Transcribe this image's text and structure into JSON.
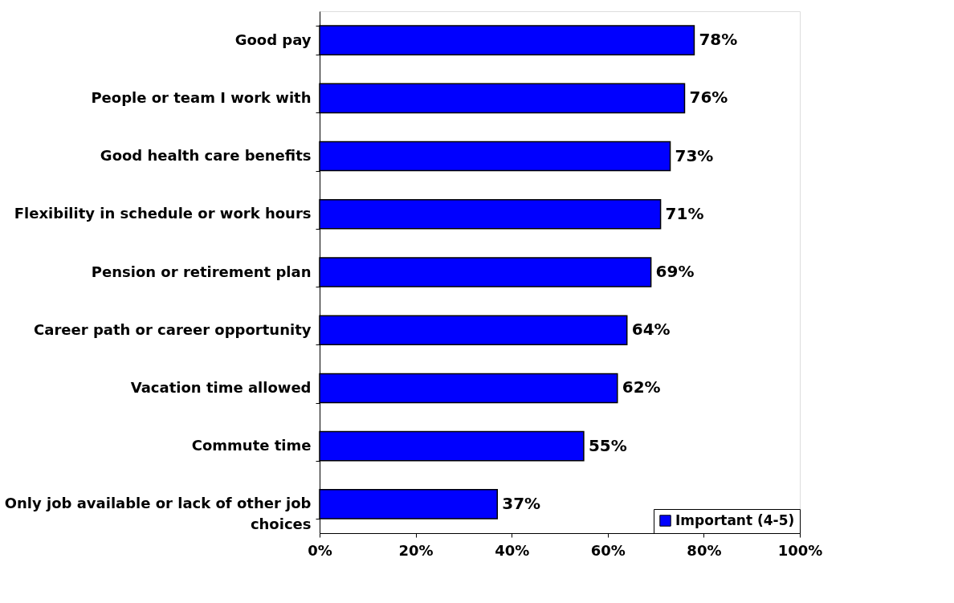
{
  "chart_data": {
    "type": "bar",
    "orientation": "horizontal",
    "categories": [
      "Good pay",
      "People or team I work with",
      "Good health care benefits",
      "Flexibility in schedule or work hours",
      "Pension or retirement plan",
      "Career path or career opportunity",
      "Vacation time allowed",
      "Commute time",
      "Only job available or lack of other job choices"
    ],
    "series": [
      {
        "name": "Important (4-5)",
        "color": "#0000ff",
        "values": [
          78,
          76,
          73,
          71,
          69,
          64,
          62,
          55,
          37
        ],
        "value_labels": [
          "78%",
          "76%",
          "73%",
          "71%",
          "69%",
          "64%",
          "62%",
          "55%",
          "37%"
        ]
      }
    ],
    "xlim": [
      0,
      100
    ],
    "xticks": [
      {
        "value": 0,
        "label": "0%"
      },
      {
        "value": 20,
        "label": "20%"
      },
      {
        "value": 40,
        "label": "40%"
      },
      {
        "value": 60,
        "label": "60%"
      },
      {
        "value": 80,
        "label": "80%"
      },
      {
        "value": 100,
        "label": "100%"
      }
    ],
    "grid": false,
    "legend": "bottom right"
  }
}
